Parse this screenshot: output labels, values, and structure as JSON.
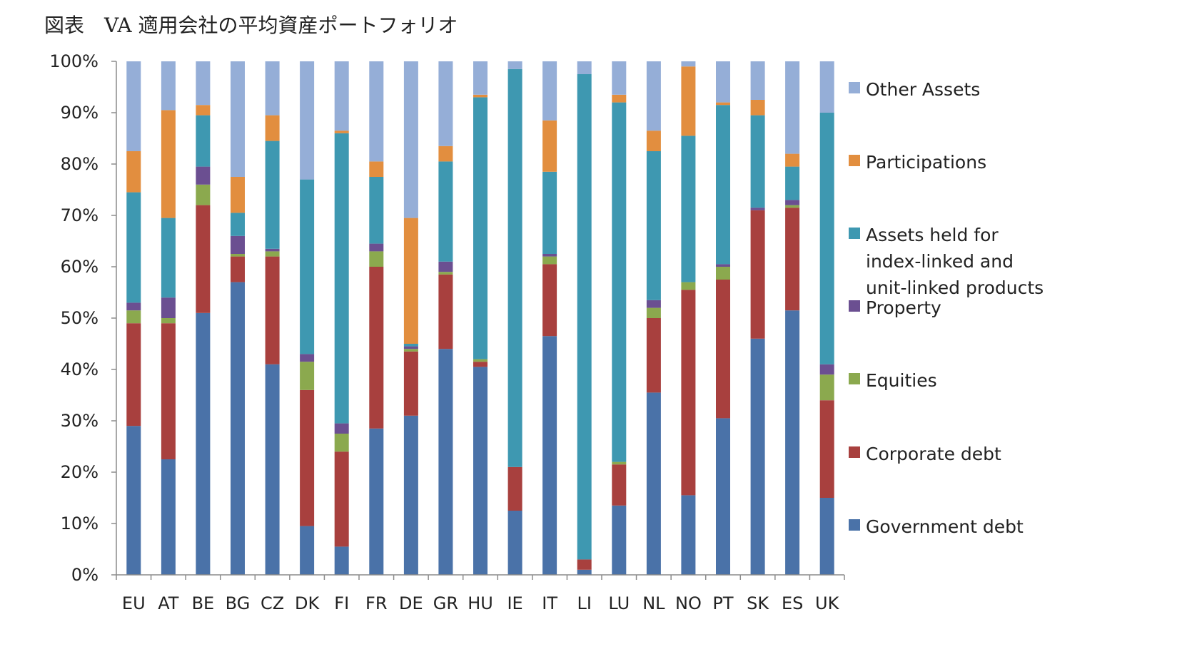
{
  "chart_data": {
    "type": "bar",
    "stacked": true,
    "percent": true,
    "title": "図表　VA 適用会社の平均資産ポートフォリオ",
    "xlabel": "",
    "ylabel": "",
    "ylim": [
      0,
      100
    ],
    "yticks": [
      "0%",
      "10%",
      "20%",
      "30%",
      "40%",
      "50%",
      "60%",
      "70%",
      "80%",
      "90%",
      "100%"
    ],
    "grid": false,
    "legend_position": "right",
    "categories": [
      "EU",
      "AT",
      "BE",
      "BG",
      "CZ",
      "DK",
      "FI",
      "FR",
      "DE",
      "GR",
      "HU",
      "IE",
      "IT",
      "LI",
      "LU",
      "NL",
      "NO",
      "PT",
      "SK",
      "ES",
      "UK"
    ],
    "series": [
      {
        "name": "Government debt",
        "color": "#4A72A8",
        "values": [
          29,
          22.5,
          51,
          57,
          41,
          9.5,
          5.5,
          28.5,
          31,
          44,
          40.5,
          12.5,
          46.5,
          1,
          13.5,
          35.5,
          15.5,
          30.5,
          46,
          51.5,
          15
        ]
      },
      {
        "name": "Corporate debt",
        "color": "#A8403E",
        "values": [
          20,
          26.5,
          21,
          5,
          21,
          26.5,
          18.5,
          31.5,
          12.5,
          14.5,
          1,
          8.5,
          14,
          2,
          8,
          14.5,
          40,
          27,
          25,
          20,
          19
        ]
      },
      {
        "name": "Equities",
        "color": "#8BA94E",
        "values": [
          2.5,
          1,
          4,
          0.5,
          1,
          5.5,
          3.5,
          3,
          0.5,
          0.5,
          0.5,
          0,
          1.5,
          0,
          0.5,
          2,
          1.5,
          2.5,
          0,
          0.5,
          5
        ]
      },
      {
        "name": "Property",
        "color": "#6B4F91",
        "values": [
          1.5,
          4,
          3.5,
          3.5,
          0.5,
          1.5,
          2,
          1.5,
          0.5,
          2,
          0,
          0,
          0.5,
          0,
          0,
          1.5,
          0,
          0.5,
          0.5,
          1,
          2
        ]
      },
      {
        "name": "Assets held for index-linked and unit-linked products",
        "color": "#3E98B1",
        "values": [
          21.5,
          15.5,
          10,
          4.5,
          21,
          34,
          56.5,
          13,
          0.5,
          19.5,
          51,
          77.5,
          16,
          94.5,
          70,
          29,
          28.5,
          31,
          18,
          6.5,
          49
        ]
      },
      {
        "name": "Participations",
        "color": "#E28E3F",
        "values": [
          8,
          21,
          2,
          7,
          5,
          0,
          0.5,
          3,
          24.5,
          3,
          0.5,
          0,
          10,
          0,
          1.5,
          4,
          13.5,
          0.5,
          3,
          2.5,
          0
        ]
      },
      {
        "name": "Other Assets",
        "color": "#95AED7",
        "values": [
          17.5,
          9.5,
          8.5,
          22.5,
          10.5,
          23,
          13.5,
          19.5,
          30.5,
          16.5,
          6.5,
          1.5,
          11.5,
          2.5,
          6.5,
          13.5,
          1,
          8,
          7.5,
          18,
          10
        ]
      }
    ],
    "legend_order": [
      "Other Assets",
      "Participations",
      "Assets held for index-linked and unit-linked products",
      "Property",
      "Equities",
      "Corporate debt",
      "Government debt"
    ],
    "legend_lines": {
      "Other Assets": [
        "Other Assets"
      ],
      "Participations": [
        "Participations"
      ],
      "Assets held for index-linked and unit-linked products": [
        "Assets held for",
        "index-linked and",
        "unit-linked products"
      ],
      "Property": [
        "Property"
      ],
      "Equities": [
        "Equities"
      ],
      "Corporate debt": [
        "Corporate debt"
      ],
      "Government debt": [
        "Government debt"
      ]
    }
  }
}
